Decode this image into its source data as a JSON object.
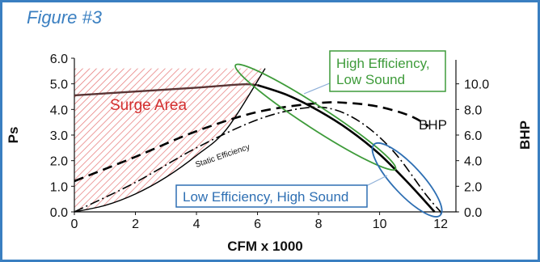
{
  "figure_title": "Figure #3",
  "colors": {
    "frame": "#3a7fc1",
    "surge_hatch": "#e57373",
    "surge_text": "#d32f2f",
    "green_box": "#3e9b3a",
    "blue_box": "#2e6fb3",
    "curves": "#000000",
    "pressure_top_curve": "#5a3535"
  },
  "chart_data": {
    "type": "line",
    "xlabel": "CFM x 1000",
    "ylabel": "Ps",
    "y2label": "BHP",
    "xlim": [
      0,
      12.5
    ],
    "ylim": [
      0,
      6
    ],
    "y2lim": [
      0,
      12
    ],
    "x_ticks": [
      "0",
      "2",
      "4",
      "6",
      "8",
      "10",
      "12"
    ],
    "y_ticks": [
      "0.0",
      "1.0",
      "2.0",
      "3.0",
      "4.0",
      "5.0",
      "6.0"
    ],
    "y2_ticks": [
      "0.0",
      "2.0",
      "4.0",
      "6.0",
      "8.0",
      "10.0"
    ],
    "series": [
      {
        "name": "Ps",
        "axis": "left",
        "style": "solid",
        "x": [
          0,
          2,
          4,
          5.5,
          6.0,
          7.0,
          8.0,
          9.0,
          10.0,
          11.0,
          11.8
        ],
        "y": [
          4.55,
          4.7,
          4.85,
          4.98,
          4.95,
          4.55,
          3.95,
          3.2,
          2.25,
          1.05,
          0.0
        ]
      },
      {
        "name": "BHP",
        "axis": "right",
        "style": "dashed",
        "x": [
          0,
          2,
          4,
          6,
          8,
          9,
          10,
          11,
          11.6
        ],
        "y": [
          2.4,
          4.3,
          6.3,
          7.8,
          8.5,
          8.5,
          8.2,
          7.5,
          6.7
        ]
      },
      {
        "name": "Static Efficiency",
        "axis": "left",
        "style": "dashdot",
        "x": [
          0,
          2,
          4,
          6,
          7.5,
          8.5,
          9.5,
          10.5,
          11.5,
          12.0
        ],
        "y": [
          0.0,
          1.15,
          2.5,
          3.6,
          4.05,
          4.0,
          3.4,
          2.3,
          0.7,
          0.0
        ]
      },
      {
        "name": "Surge boundary",
        "axis": "left",
        "style": "solid",
        "x": [
          0,
          1,
          2,
          3,
          4,
          5,
          6.25
        ],
        "y": [
          0.0,
          0.25,
          0.7,
          1.35,
          2.2,
          3.25,
          5.6
        ]
      }
    ],
    "annotations": [
      {
        "text": "Surge Area",
        "region": "hatched area top-left"
      },
      {
        "text": "High Efficiency,\nLow Sound",
        "callout": "green box"
      },
      {
        "text": "Low Efficiency, High Sound",
        "callout": "blue box"
      },
      {
        "text": "BHP",
        "label_for": "dashed curve"
      },
      {
        "text": "Static Efficiency",
        "label_for": "surge boundary"
      }
    ]
  },
  "labels": {
    "surge_area": "Surge Area",
    "high_eff_line1": "High Efficiency,",
    "high_eff_line2": "Low Sound",
    "low_eff": "Low Efficiency, High Sound",
    "bhp_curve_label": "BHP",
    "static_eff": "Static Efficiency"
  }
}
